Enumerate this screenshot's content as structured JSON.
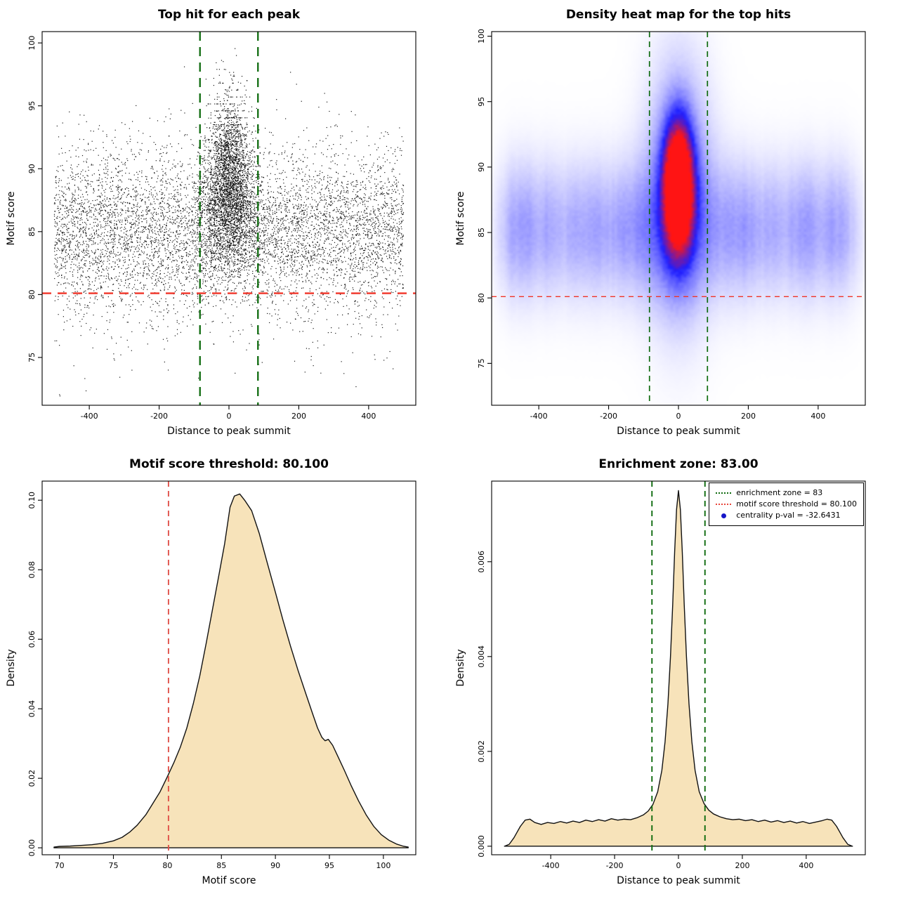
{
  "colors": {
    "background": "#ffffff",
    "threshold_red": "#e8453b",
    "zone_green": "#0e6b0e",
    "density_fill": "#f7e3ba",
    "density_stroke": "#111111",
    "legend_blue": "#1616c8"
  },
  "chart_data": [
    {
      "type": "scatter",
      "title": "Top hit for each peak",
      "xlabel": "Distance to peak summit",
      "ylabel": "Motif score",
      "xlim": [
        -535,
        535
      ],
      "ylim": [
        71.2,
        100.9
      ],
      "xticks": [
        {
          "v": -400,
          "label": "-400"
        },
        {
          "v": -200,
          "label": "-200"
        },
        {
          "v": 0,
          "label": "0"
        },
        {
          "v": 200,
          "label": "200"
        },
        {
          "v": 400,
          "label": "400"
        }
      ],
      "yticks": [
        {
          "v": 75,
          "label": "75"
        },
        {
          "v": 80,
          "label": "80"
        },
        {
          "v": 85,
          "label": "85"
        },
        {
          "v": 90,
          "label": "90"
        },
        {
          "v": 95,
          "label": "95"
        },
        {
          "v": 100,
          "label": "100"
        }
      ],
      "lines": [
        {
          "orient": "h",
          "value": 80.1,
          "color": "#f03428",
          "dash": [
            13,
            9
          ],
          "width": 2.3
        },
        {
          "orient": "v",
          "value": -83,
          "color": "#0e6b0e",
          "dash": [
            13,
            9
          ],
          "width": 2.3
        },
        {
          "orient": "v",
          "value": 83,
          "color": "#0e6b0e",
          "dash": [
            13,
            9
          ],
          "width": 2.3
        }
      ],
      "scatter": {
        "seed": 1337,
        "point_color": "#000000",
        "n_background": 6800,
        "n_cluster": 3600,
        "bg_x_range": [
          -500,
          500
        ],
        "bg_score_mean": 85.1,
        "bg_score_sd": 3.1,
        "bg_tail_mean": 83.8,
        "bg_tail_sd": 5.2,
        "bg_tail_frac": 0.1,
        "bg_score_min": 71.8,
        "bg_score_max": 98.5,
        "cluster_score_mean": 88.3,
        "cluster_score_sd": 3.5,
        "cluster_score_min": 79.2,
        "cluster_score_max": 100,
        "cluster_x_sd_base": 52,
        "cluster_x_sd_slope": 1.7
      }
    },
    {
      "type": "heatmap",
      "title": "Density heat map for the top hits",
      "xlabel": "Distance to peak summit",
      "ylabel": "Motif score",
      "xlim": [
        -535,
        535
      ],
      "ylim": [
        71.8,
        100.35
      ],
      "xticks": [
        {
          "v": -400,
          "label": "-400"
        },
        {
          "v": -200,
          "label": "-200"
        },
        {
          "v": 0,
          "label": "0"
        },
        {
          "v": 200,
          "label": "200"
        },
        {
          "v": 400,
          "label": "400"
        }
      ],
      "yticks": [
        {
          "v": 75,
          "label": "75"
        },
        {
          "v": 80,
          "label": "80"
        },
        {
          "v": 85,
          "label": "85"
        },
        {
          "v": 90,
          "label": "90"
        },
        {
          "v": 95,
          "label": "95"
        },
        {
          "v": 100,
          "label": "100"
        }
      ],
      "lines": [
        {
          "orient": "h",
          "value": 80.1,
          "color": "#f03428",
          "dash": [
            7,
            6
          ],
          "width": 1.4
        },
        {
          "orient": "v",
          "value": -83,
          "color": "#0e6b0e",
          "dash": [
            8,
            6
          ],
          "width": 1.7
        },
        {
          "orient": "v",
          "value": 83,
          "color": "#0e6b0e",
          "dash": [
            8,
            6
          ],
          "width": 1.7
        }
      ],
      "density_model": {
        "seed": 77,
        "band": {
          "y": 85.2,
          "sd": 3.5,
          "w": 0.21
        },
        "halo": {
          "y": 88.2,
          "sx": 62,
          "sy": 6.4,
          "w": 0.3
        },
        "core": {
          "y": 88.5,
          "sx": 27,
          "sy": 3.1,
          "w": 1.62
        },
        "x_fade_start": 468,
        "x_fade_len": 80,
        "colormap": [
          "#ffffff",
          "#1e1eff",
          "#ff1414"
        ]
      }
    },
    {
      "type": "area",
      "title": "Motif score threshold: 80.100",
      "xlabel": "Motif score",
      "ylabel": "Density",
      "xlim": [
        68.4,
        103
      ],
      "ylim": [
        -0.002,
        0.1055
      ],
      "xticks": [
        {
          "v": 70,
          "label": "70"
        },
        {
          "v": 75,
          "label": "75"
        },
        {
          "v": 80,
          "label": "80"
        },
        {
          "v": 85,
          "label": "85"
        },
        {
          "v": 90,
          "label": "90"
        },
        {
          "v": 95,
          "label": "95"
        },
        {
          "v": 100,
          "label": "100"
        }
      ],
      "yticks": [
        {
          "v": 0,
          "label": "0.00"
        },
        {
          "v": 0.02,
          "label": "0.02"
        },
        {
          "v": 0.04,
          "label": "0.04"
        },
        {
          "v": 0.06,
          "label": "0.06"
        },
        {
          "v": 0.08,
          "label": "0.08"
        },
        {
          "v": 0.1,
          "label": "0.10"
        }
      ],
      "lines": [
        {
          "orient": "v",
          "value": 80.1,
          "color": "#e0514a",
          "dash": [
            8,
            6
          ],
          "width": 1.9
        }
      ],
      "fill": "#f7e3ba",
      "curve": {
        "x": [
          69.5,
          70,
          71,
          72,
          73,
          74,
          75,
          75.8,
          76.5,
          77.2,
          78,
          78.6,
          79.3,
          80,
          80.6,
          81.2,
          81.8,
          82.4,
          83,
          83.6,
          84.2,
          84.8,
          85.3,
          85.8,
          86.2,
          86.7,
          87.2,
          87.8,
          88.5,
          89.2,
          90,
          90.7,
          91.4,
          92.1,
          92.8,
          93.4,
          93.9,
          94.3,
          94.6,
          94.9,
          95.3,
          95.8,
          96.4,
          97,
          97.7,
          98.4,
          99.1,
          99.8,
          100.5,
          101.2,
          101.8,
          102.3
        ],
        "y": [
          0.0002,
          0.0004,
          0.0005,
          0.0007,
          0.0009,
          0.0013,
          0.002,
          0.003,
          0.0045,
          0.0065,
          0.0095,
          0.0125,
          0.016,
          0.0205,
          0.0245,
          0.029,
          0.0345,
          0.0415,
          0.0495,
          0.059,
          0.069,
          0.079,
          0.0875,
          0.098,
          0.1012,
          0.1018,
          0.0998,
          0.097,
          0.0905,
          0.0825,
          0.0735,
          0.0655,
          0.058,
          0.051,
          0.0445,
          0.039,
          0.0345,
          0.0318,
          0.0308,
          0.0312,
          0.0295,
          0.0262,
          0.0222,
          0.018,
          0.0135,
          0.0095,
          0.0062,
          0.0038,
          0.0022,
          0.0011,
          0.0005,
          0.0002
        ]
      }
    },
    {
      "type": "area",
      "title": "Enrichment zone: 83.00",
      "xlabel": "Distance to peak summit",
      "ylabel": "Density",
      "xlim": [
        -585,
        585
      ],
      "ylim": [
        -0.00018,
        0.0077
      ],
      "xticks": [
        {
          "v": -400,
          "label": "-400"
        },
        {
          "v": -200,
          "label": "-200"
        },
        {
          "v": 0,
          "label": "0"
        },
        {
          "v": 200,
          "label": "200"
        },
        {
          "v": 400,
          "label": "400"
        }
      ],
      "yticks": [
        {
          "v": 0,
          "label": "0.000"
        },
        {
          "v": 0.002,
          "label": "0.002"
        },
        {
          "v": 0.004,
          "label": "0.004"
        },
        {
          "v": 0.006,
          "label": "0.006"
        }
      ],
      "lines": [
        {
          "orient": "v",
          "value": -83,
          "color": "#0e6b0e",
          "dash": [
            8,
            6
          ],
          "width": 1.9
        },
        {
          "orient": "v",
          "value": 83,
          "color": "#0e6b0e",
          "dash": [
            8,
            6
          ],
          "width": 1.9
        }
      ],
      "fill": "#f7e3ba",
      "curve": {
        "x": [
          -545,
          -530,
          -515,
          -505,
          -495,
          -480,
          -465,
          -450,
          -430,
          -410,
          -390,
          -370,
          -350,
          -330,
          -310,
          -290,
          -270,
          -250,
          -230,
          -210,
          -190,
          -170,
          -150,
          -130,
          -110,
          -95,
          -80,
          -65,
          -52,
          -42,
          -33,
          -25,
          -18,
          -12,
          -6,
          0,
          6,
          12,
          18,
          25,
          33,
          42,
          52,
          65,
          80,
          95,
          110,
          130,
          150,
          170,
          190,
          210,
          230,
          250,
          270,
          290,
          310,
          330,
          350,
          370,
          390,
          410,
          430,
          450,
          465,
          480,
          495,
          505,
          515,
          530,
          545
        ],
        "y": [
          0,
          4e-05,
          0.00018,
          0.0003,
          0.00042,
          0.00055,
          0.00057,
          0.0005,
          0.00046,
          0.0005,
          0.00048,
          0.00052,
          0.00049,
          0.00053,
          0.0005,
          0.00055,
          0.00052,
          0.00056,
          0.00053,
          0.00058,
          0.00055,
          0.00057,
          0.00056,
          0.0006,
          0.00066,
          0.00074,
          0.00088,
          0.00115,
          0.0016,
          0.0022,
          0.003,
          0.004,
          0.0051,
          0.0062,
          0.0071,
          0.0075,
          0.0071,
          0.0062,
          0.0051,
          0.004,
          0.003,
          0.0022,
          0.0016,
          0.00115,
          0.0009,
          0.00076,
          0.00068,
          0.00062,
          0.00058,
          0.00056,
          0.00057,
          0.00054,
          0.00056,
          0.00052,
          0.00055,
          0.00051,
          0.00054,
          0.0005,
          0.00053,
          0.00049,
          0.00052,
          0.00048,
          0.00051,
          0.00054,
          0.00057,
          0.00055,
          0.00042,
          0.0003,
          0.00018,
          4e-05,
          0
        ]
      },
      "legend": {
        "items": [
          {
            "label": "enrichment zone = 83",
            "color": "#0e6b0e",
            "sample": "dotted-line"
          },
          {
            "label": "motif score threshold = 80.100",
            "color": "#e8453b",
            "sample": "dotted-line"
          },
          {
            "label": "centrality p-val = -32.6431",
            "color": "#1616c8",
            "sample": "point"
          }
        ]
      }
    }
  ]
}
